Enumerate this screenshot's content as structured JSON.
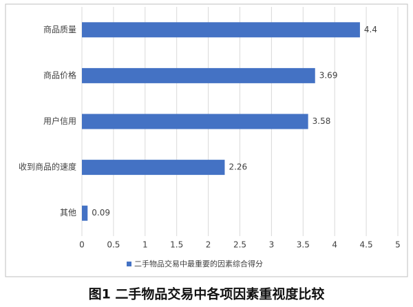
{
  "chart_data": {
    "type": "bar",
    "orientation": "horizontal",
    "categories": [
      "商品质量",
      "商品价格",
      "用户信用",
      "收到商品的速度",
      "其他"
    ],
    "series": [
      {
        "name": "二手物品交易中最重要的因素综合得分",
        "color": "#4472c4",
        "values": [
          4.4,
          3.69,
          3.58,
          2.26,
          0.09
        ]
      }
    ],
    "xlim": [
      0,
      5
    ],
    "xticks": [
      0,
      0.5,
      1,
      1.5,
      2,
      2.5,
      3,
      3.5,
      4,
      4.5,
      5
    ],
    "grid": true,
    "legend": "bottom"
  },
  "caption": "图1  二手物品交易中各项因素重视度比较"
}
